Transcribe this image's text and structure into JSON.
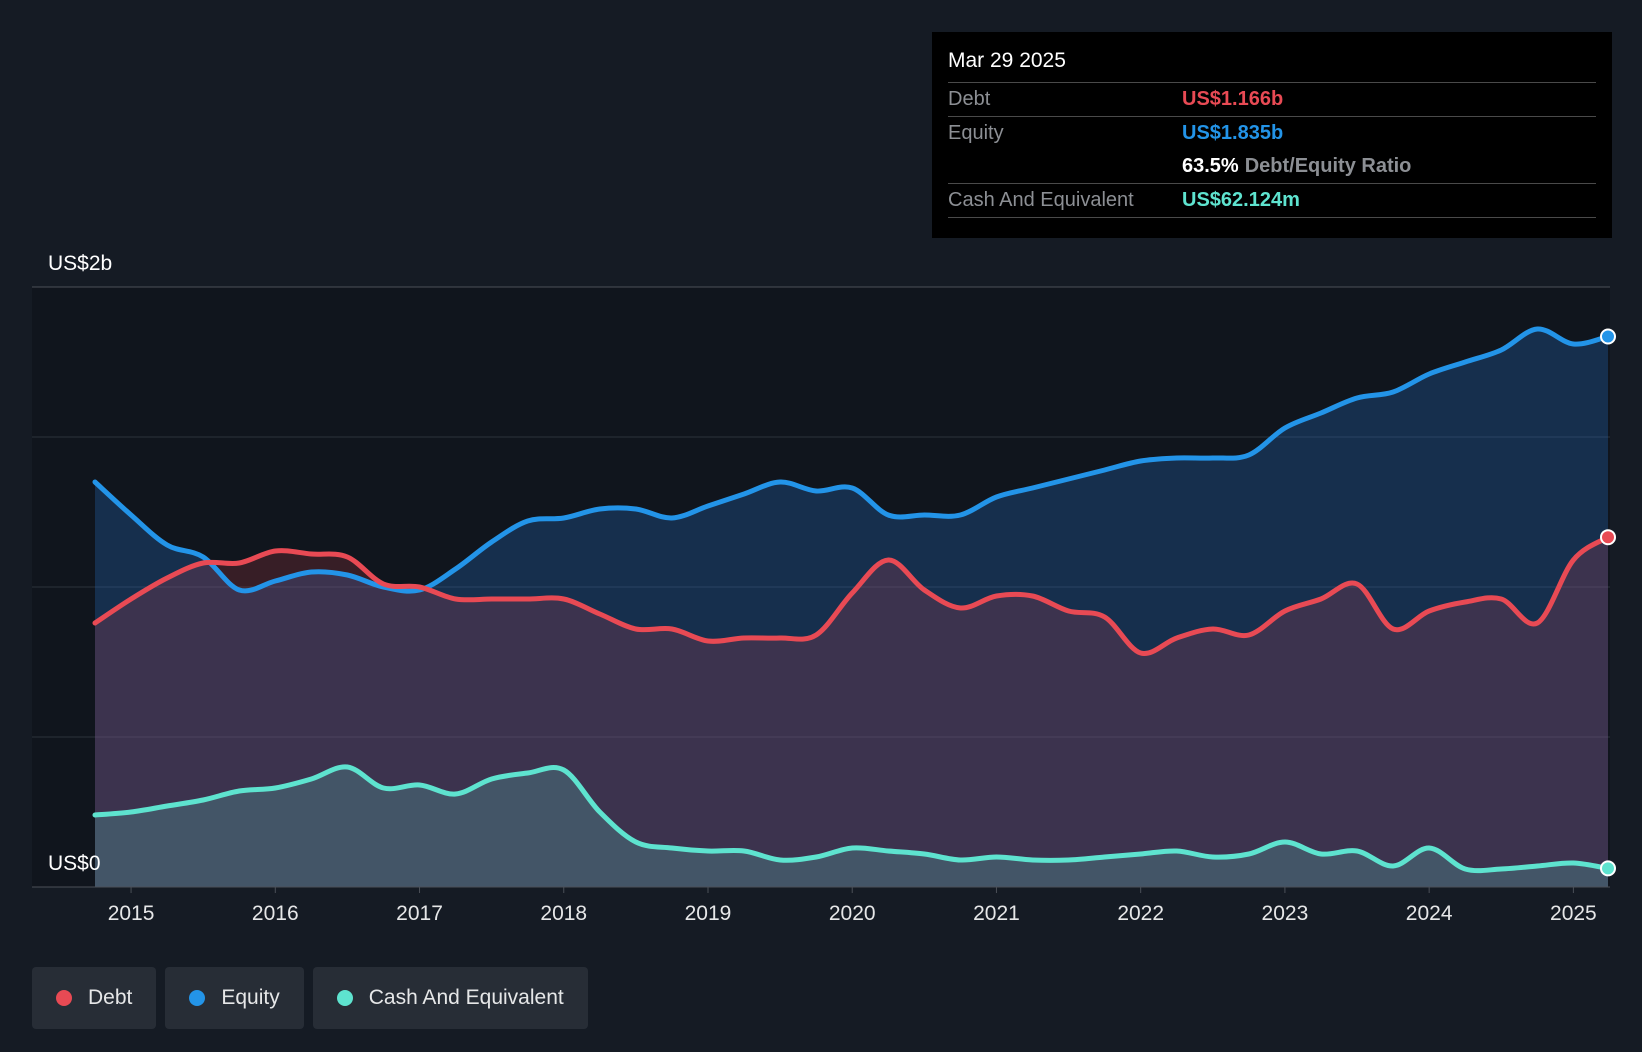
{
  "tooltip": {
    "date": "Mar 29 2025",
    "debt_label": "Debt",
    "debt_value": "US$1.166b",
    "equity_label": "Equity",
    "equity_value": "US$1.835b",
    "ratio_value": "63.5%",
    "ratio_label": "Debt/Equity Ratio",
    "cash_label": "Cash And Equivalent",
    "cash_value": "US$62.124m"
  },
  "legend": {
    "debt": "Debt",
    "equity": "Equity",
    "cash": "Cash And Equivalent"
  },
  "colors": {
    "debt": "#e84a54",
    "equity": "#2394e8",
    "cash": "#5ee3cf",
    "background": "#151b24",
    "plot_background": "#10151d"
  },
  "chart_data": {
    "type": "area",
    "title": "",
    "xlabel": "",
    "ylabel": "",
    "y_top_label": "US$2b",
    "y_bottom_label": "US$0",
    "xlim": [
      2014.55,
      2025.24
    ],
    "ylim": [
      0,
      2.0
    ],
    "x_ticks": [
      2015,
      2016,
      2017,
      2018,
      2019,
      2020,
      2021,
      2022,
      2023,
      2024,
      2025
    ],
    "x_tick_labels": [
      "2015",
      "2016",
      "2017",
      "2018",
      "2019",
      "2020",
      "2021",
      "2022",
      "2023",
      "2024",
      "2025"
    ],
    "gridlines_y": [
      0.5,
      1.0,
      1.5,
      2.0
    ],
    "series": [
      {
        "name": "Equity",
        "unit": "US$b",
        "x": [
          2014.75,
          2015.0,
          2015.25,
          2015.5,
          2015.75,
          2016.0,
          2016.25,
          2016.5,
          2016.75,
          2017.0,
          2017.25,
          2017.5,
          2017.75,
          2018.0,
          2018.25,
          2018.5,
          2018.75,
          2019.0,
          2019.25,
          2019.5,
          2019.75,
          2020.0,
          2020.25,
          2020.5,
          2020.75,
          2021.0,
          2021.25,
          2021.5,
          2021.75,
          2022.0,
          2022.25,
          2022.5,
          2022.75,
          2023.0,
          2023.25,
          2023.5,
          2023.75,
          2024.0,
          2024.25,
          2024.5,
          2024.75,
          2025.0,
          2025.24
        ],
        "values": [
          1.35,
          1.24,
          1.14,
          1.1,
          0.99,
          1.02,
          1.05,
          1.04,
          1.0,
          0.99,
          1.06,
          1.15,
          1.22,
          1.23,
          1.26,
          1.26,
          1.23,
          1.27,
          1.31,
          1.35,
          1.32,
          1.33,
          1.24,
          1.24,
          1.24,
          1.3,
          1.33,
          1.36,
          1.39,
          1.42,
          1.43,
          1.43,
          1.44,
          1.53,
          1.58,
          1.63,
          1.65,
          1.71,
          1.75,
          1.79,
          1.86,
          1.81,
          1.835
        ]
      },
      {
        "name": "Debt",
        "unit": "US$b",
        "x": [
          2014.75,
          2015.0,
          2015.25,
          2015.5,
          2015.75,
          2016.0,
          2016.25,
          2016.5,
          2016.75,
          2017.0,
          2017.25,
          2017.5,
          2017.75,
          2018.0,
          2018.25,
          2018.5,
          2018.75,
          2019.0,
          2019.25,
          2019.5,
          2019.75,
          2020.0,
          2020.25,
          2020.5,
          2020.75,
          2021.0,
          2021.25,
          2021.5,
          2021.75,
          2022.0,
          2022.25,
          2022.5,
          2022.75,
          2023.0,
          2023.25,
          2023.5,
          2023.75,
          2024.0,
          2024.25,
          2024.5,
          2024.75,
          2025.0,
          2025.24
        ],
        "values": [
          0.88,
          0.96,
          1.03,
          1.08,
          1.08,
          1.12,
          1.11,
          1.1,
          1.01,
          1.0,
          0.96,
          0.96,
          0.96,
          0.96,
          0.91,
          0.86,
          0.86,
          0.82,
          0.83,
          0.83,
          0.84,
          0.98,
          1.09,
          0.99,
          0.93,
          0.97,
          0.97,
          0.92,
          0.9,
          0.78,
          0.83,
          0.86,
          0.84,
          0.92,
          0.96,
          1.01,
          0.86,
          0.92,
          0.95,
          0.96,
          0.88,
          1.09,
          1.166
        ]
      },
      {
        "name": "Cash And Equivalent",
        "unit": "US$b",
        "x": [
          2014.75,
          2015.0,
          2015.25,
          2015.5,
          2015.75,
          2016.0,
          2016.25,
          2016.5,
          2016.75,
          2017.0,
          2017.25,
          2017.5,
          2017.75,
          2018.0,
          2018.25,
          2018.5,
          2018.75,
          2019.0,
          2019.25,
          2019.5,
          2019.75,
          2020.0,
          2020.25,
          2020.5,
          2020.75,
          2021.0,
          2021.25,
          2021.5,
          2021.75,
          2022.0,
          2022.25,
          2022.5,
          2022.75,
          2023.0,
          2023.25,
          2023.5,
          2023.75,
          2024.0,
          2024.25,
          2024.5,
          2024.75,
          2025.0,
          2025.24
        ],
        "values": [
          0.24,
          0.25,
          0.27,
          0.29,
          0.32,
          0.33,
          0.36,
          0.4,
          0.33,
          0.34,
          0.31,
          0.36,
          0.38,
          0.39,
          0.25,
          0.15,
          0.13,
          0.12,
          0.12,
          0.09,
          0.1,
          0.13,
          0.12,
          0.11,
          0.09,
          0.1,
          0.09,
          0.09,
          0.1,
          0.11,
          0.12,
          0.1,
          0.11,
          0.15,
          0.11,
          0.12,
          0.07,
          0.13,
          0.06,
          0.06,
          0.07,
          0.08,
          0.062
        ]
      }
    ]
  }
}
